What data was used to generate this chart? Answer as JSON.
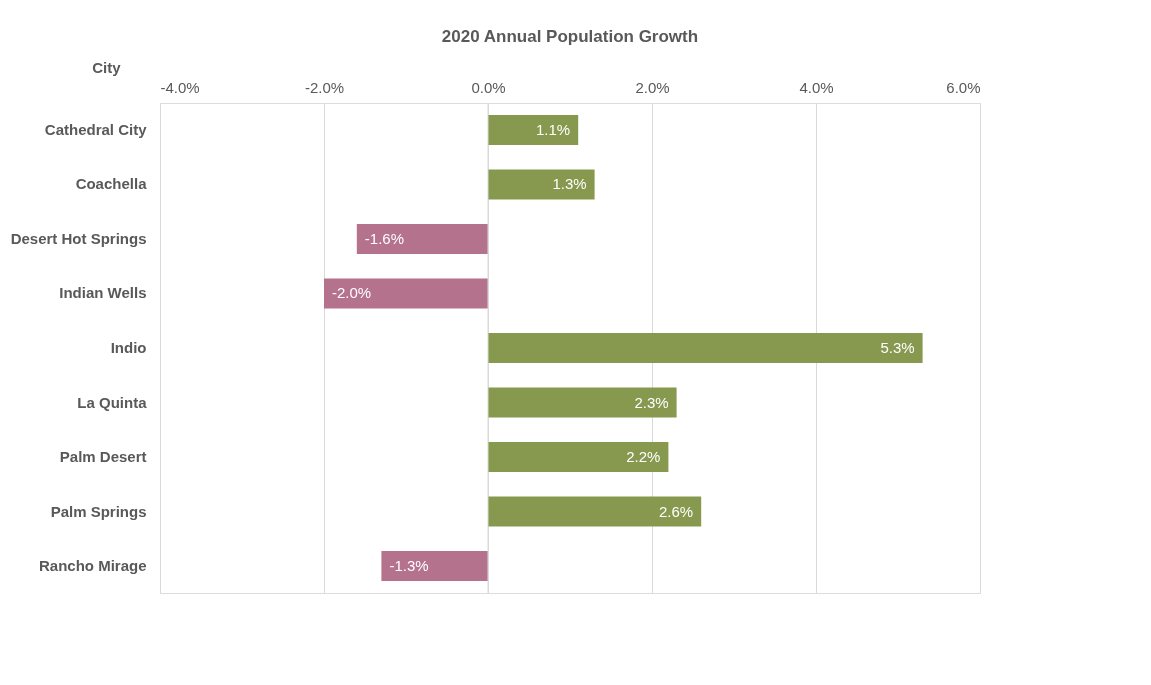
{
  "chart_data": {
    "type": "bar",
    "orientation": "horizontal",
    "title": "2020 Annual Population Growth",
    "ylabel": "City",
    "categories": [
      "Cathedral City",
      "Coachella",
      "Desert Hot Springs",
      "Indian Wells",
      "Indio",
      "La Quinta",
      "Palm Desert",
      "Palm Springs",
      "Rancho Mirage"
    ],
    "values": [
      1.1,
      1.3,
      -1.6,
      -2.0,
      5.3,
      2.3,
      2.2,
      2.6,
      -1.3
    ],
    "value_labels": [
      "1.1%",
      "1.3%",
      "-1.6%",
      "-2.0%",
      "5.3%",
      "2.3%",
      "2.2%",
      "2.6%",
      "-1.3%"
    ],
    "colors": [
      "#86994f",
      "#86994f",
      "#b5728d",
      "#b5728d",
      "#86994f",
      "#86994f",
      "#86994f",
      "#86994f",
      "#b5728d"
    ],
    "xlim": [
      -4,
      6
    ],
    "xticks": [
      {
        "value": -4,
        "label": "-4.0%"
      },
      {
        "value": -2,
        "label": "-2.0%"
      },
      {
        "value": 0,
        "label": "0.0%"
      },
      {
        "value": 2,
        "label": "2.0%"
      },
      {
        "value": 4,
        "label": "4.0%"
      },
      {
        "value": 6,
        "label": "6.0%"
      }
    ],
    "grid": "x"
  }
}
